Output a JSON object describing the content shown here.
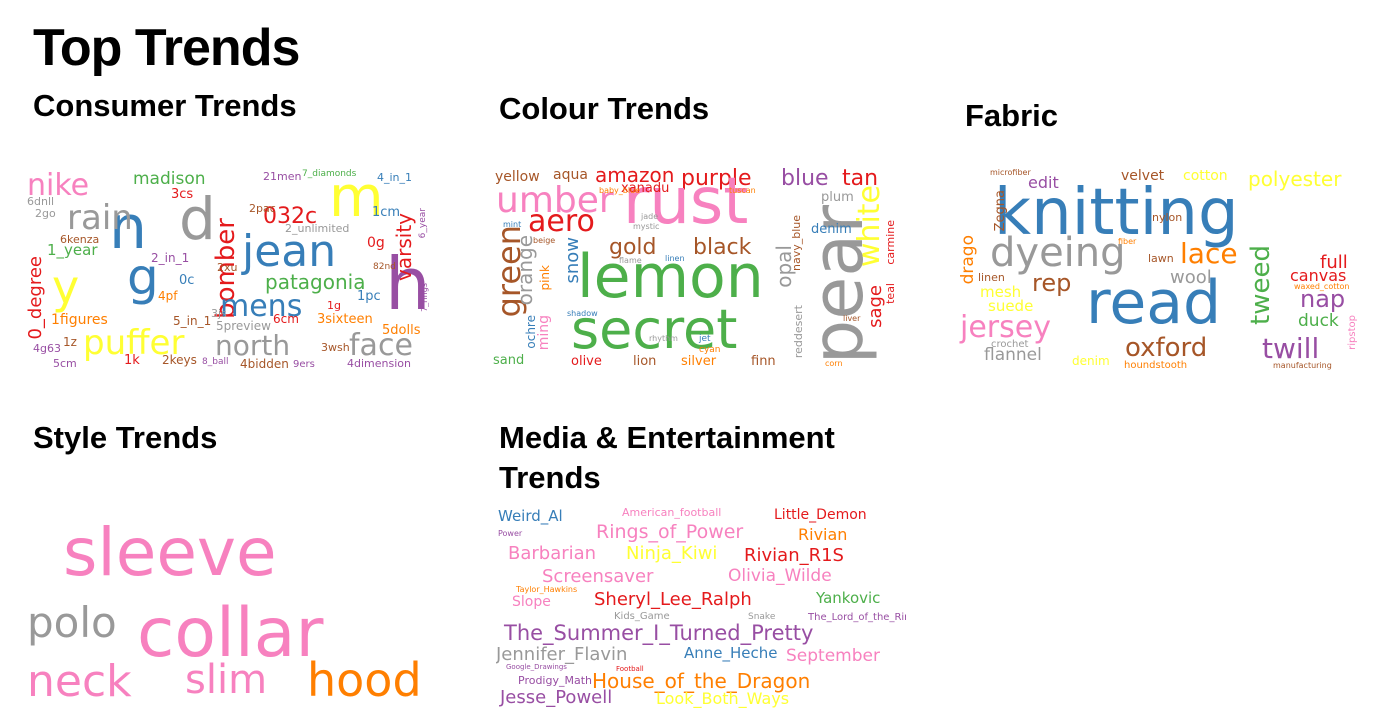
{
  "page": {
    "title": "Top Trends"
  },
  "sections": {
    "consumer": "Consumer Trends",
    "colour": "Colour Trends",
    "fabric": "Fabric",
    "style": "Style Trends",
    "media_line1": "Media & Entertainment",
    "media_line2": "Trends"
  },
  "colors": {
    "pink": "#f781bf",
    "red": "#e41a1c",
    "blue": "#377eb8",
    "green": "#4daf4a",
    "purple": "#984ea3",
    "orange": "#ff7f00",
    "yellow": "#ffff33",
    "brown": "#a65628",
    "gray": "#999999"
  },
  "clouds": {
    "consumer": [
      {
        "t": "nike",
        "s": 30,
        "c": "pink"
      },
      {
        "t": "n",
        "s": 60,
        "c": "blue"
      },
      {
        "t": "d",
        "s": 58,
        "c": "gray"
      },
      {
        "t": "m",
        "s": 56,
        "c": "yellow"
      },
      {
        "t": "jean",
        "s": 44,
        "c": "blue"
      },
      {
        "t": "h",
        "s": 72,
        "c": "purple"
      },
      {
        "t": "rain",
        "s": 34,
        "c": "gray"
      },
      {
        "t": "g",
        "s": 50,
        "c": "blue"
      },
      {
        "t": "y",
        "s": 46,
        "c": "yellow"
      },
      {
        "t": "bomber",
        "s": 26,
        "c": "red"
      },
      {
        "t": "032c",
        "s": 22,
        "c": "red"
      },
      {
        "t": "varsity",
        "s": 20,
        "c": "red"
      },
      {
        "t": "patagonia",
        "s": 20,
        "c": "green"
      },
      {
        "t": "mens",
        "s": 30,
        "c": "blue"
      },
      {
        "t": "puffer",
        "s": 34,
        "c": "yellow"
      },
      {
        "t": "north",
        "s": 28,
        "c": "gray"
      },
      {
        "t": "face",
        "s": 30,
        "c": "gray"
      },
      {
        "t": "madison",
        "s": 17,
        "c": "green"
      },
      {
        "t": "0_degree",
        "s": 18,
        "c": "red"
      },
      {
        "t": "1_year",
        "s": 15,
        "c": "green"
      },
      {
        "t": "1figures",
        "s": 14,
        "c": "orange"
      },
      {
        "t": "3sixteen",
        "s": 13,
        "c": "orange"
      },
      {
        "t": "5dolls",
        "s": 13,
        "c": "orange"
      },
      {
        "t": "2_unlimited",
        "s": 11,
        "c": "gray"
      },
      {
        "t": "4bidden",
        "s": 12,
        "c": "brown"
      },
      {
        "t": "4dimension",
        "s": 11,
        "c": "purple"
      },
      {
        "t": "5preview",
        "s": 12,
        "c": "gray"
      },
      {
        "t": "2keys",
        "s": 12,
        "c": "brown"
      },
      {
        "t": "6cm",
        "s": 12,
        "c": "red"
      },
      {
        "t": "1pc",
        "s": 13,
        "c": "blue"
      },
      {
        "t": "0g",
        "s": 14,
        "c": "red"
      },
      {
        "t": "1cm",
        "s": 13,
        "c": "blue"
      },
      {
        "t": "2go",
        "s": 11,
        "c": "gray"
      },
      {
        "t": "6dnll",
        "s": 11,
        "c": "gray"
      },
      {
        "t": "6kenza",
        "s": 11,
        "c": "brown"
      },
      {
        "t": "2_in_1",
        "s": 12,
        "c": "purple"
      },
      {
        "t": "5_in_1",
        "s": 12,
        "c": "brown"
      },
      {
        "t": "4pf",
        "s": 12,
        "c": "orange"
      },
      {
        "t": "3cs",
        "s": 13,
        "c": "red"
      },
      {
        "t": "1k",
        "s": 13,
        "c": "red"
      },
      {
        "t": "4g63",
        "s": 11,
        "c": "purple"
      },
      {
        "t": "5cm",
        "s": 11,
        "c": "purple"
      },
      {
        "t": "9ers",
        "s": 10,
        "c": "purple"
      },
      {
        "t": "21men",
        "s": 11,
        "c": "purple"
      },
      {
        "t": "7_diamonds",
        "s": 9,
        "c": "green"
      },
      {
        "t": "3wsh",
        "s": 11,
        "c": "brown"
      },
      {
        "t": "2pac",
        "s": 11,
        "c": "brown"
      },
      {
        "t": "4_in_1",
        "s": 11,
        "c": "blue"
      },
      {
        "t": "3js",
        "s": 11,
        "c": "gray"
      },
      {
        "t": "1g",
        "s": 11,
        "c": "red"
      },
      {
        "t": "2xu",
        "s": 11,
        "c": "brown"
      },
      {
        "t": "8_ball",
        "s": 9,
        "c": "purple"
      },
      {
        "t": "0c",
        "s": 13,
        "c": "blue"
      },
      {
        "t": "1z",
        "s": 12,
        "c": "brown"
      },
      {
        "t": "82nd",
        "s": 9,
        "c": "brown"
      },
      {
        "t": "6_year",
        "s": 9,
        "c": "purple"
      },
      {
        "t": "7_rings",
        "s": 8,
        "c": "purple"
      }
    ],
    "colour": [
      {
        "t": "yellow",
        "s": 14,
        "c": "brown"
      },
      {
        "t": "aqua",
        "s": 14,
        "c": "brown"
      },
      {
        "t": "amazon",
        "s": 20,
        "c": "red"
      },
      {
        "t": "purple",
        "s": 22,
        "c": "red"
      },
      {
        "t": "blue",
        "s": 22,
        "c": "purple"
      },
      {
        "t": "tan",
        "s": 22,
        "c": "red"
      },
      {
        "t": "umber",
        "s": 36,
        "c": "pink"
      },
      {
        "t": "rust",
        "s": 64,
        "c": "pink"
      },
      {
        "t": "pear",
        "s": 70,
        "c": "gray"
      },
      {
        "t": "aero",
        "s": 30,
        "c": "red"
      },
      {
        "t": "white",
        "s": 30,
        "c": "yellow"
      },
      {
        "t": "lemon",
        "s": 60,
        "c": "green"
      },
      {
        "t": "secret",
        "s": 54,
        "c": "green"
      },
      {
        "t": "green",
        "s": 32,
        "c": "brown"
      },
      {
        "t": "orange",
        "s": 20,
        "c": "gray"
      },
      {
        "t": "gold",
        "s": 22,
        "c": "brown"
      },
      {
        "t": "black",
        "s": 22,
        "c": "brown"
      },
      {
        "t": "snow",
        "s": 18,
        "c": "blue"
      },
      {
        "t": "opal",
        "s": 20,
        "c": "gray"
      },
      {
        "t": "denim",
        "s": 13,
        "c": "blue"
      },
      {
        "t": "plum",
        "s": 13,
        "c": "gray"
      },
      {
        "t": "sage",
        "s": 18,
        "c": "red"
      },
      {
        "t": "carmine",
        "s": 11,
        "c": "red"
      },
      {
        "t": "teal",
        "s": 11,
        "c": "red"
      },
      {
        "t": "xanadu",
        "s": 13,
        "c": "red"
      },
      {
        "t": "ming",
        "s": 14,
        "c": "pink"
      },
      {
        "t": "pink",
        "s": 12,
        "c": "orange"
      },
      {
        "t": "ochre",
        "s": 12,
        "c": "blue"
      },
      {
        "t": "sand",
        "s": 13,
        "c": "green"
      },
      {
        "t": "olive",
        "s": 13,
        "c": "red"
      },
      {
        "t": "lion",
        "s": 13,
        "c": "brown"
      },
      {
        "t": "silver",
        "s": 13,
        "c": "orange"
      },
      {
        "t": "finn",
        "s": 13,
        "c": "brown"
      },
      {
        "t": "reddesert",
        "s": 11,
        "c": "gray"
      },
      {
        "t": "navy_blue",
        "s": 11,
        "c": "brown"
      },
      {
        "t": "rhythm",
        "s": 8,
        "c": "gray"
      },
      {
        "t": "jet",
        "s": 9,
        "c": "blue"
      },
      {
        "t": "cyan",
        "s": 9,
        "c": "orange"
      },
      {
        "t": "linen",
        "s": 8,
        "c": "blue"
      },
      {
        "t": "flame",
        "s": 8,
        "c": "gray"
      },
      {
        "t": "jade",
        "s": 8,
        "c": "gray"
      },
      {
        "t": "mystic",
        "s": 8,
        "c": "gray"
      },
      {
        "t": "beige",
        "s": 8,
        "c": "brown"
      },
      {
        "t": "mint",
        "s": 8,
        "c": "blue"
      },
      {
        "t": "baby_blue",
        "s": 8,
        "c": "orange"
      },
      {
        "t": "tuscan",
        "s": 8,
        "c": "orange"
      },
      {
        "t": "shadow",
        "s": 8,
        "c": "blue"
      },
      {
        "t": "liver",
        "s": 8,
        "c": "brown"
      },
      {
        "t": "corn",
        "s": 8,
        "c": "orange"
      }
    ],
    "fabric": [
      {
        "t": "microfiber",
        "s": 8,
        "c": "brown"
      },
      {
        "t": "velvet",
        "s": 14,
        "c": "brown"
      },
      {
        "t": "cotton",
        "s": 14,
        "c": "yellow"
      },
      {
        "t": "polyester",
        "s": 20,
        "c": "yellow"
      },
      {
        "t": "edit",
        "s": 16,
        "c": "purple"
      },
      {
        "t": "knitting",
        "s": 64,
        "c": "blue"
      },
      {
        "t": "Zegna",
        "s": 13,
        "c": "brown"
      },
      {
        "t": "drago",
        "s": 17,
        "c": "orange"
      },
      {
        "t": "dyeing",
        "s": 40,
        "c": "gray"
      },
      {
        "t": "nylon",
        "s": 11,
        "c": "brown"
      },
      {
        "t": "lace",
        "s": 28,
        "c": "orange"
      },
      {
        "t": "full",
        "s": 18,
        "c": "red"
      },
      {
        "t": "canvas",
        "s": 16,
        "c": "red"
      },
      {
        "t": "lawn",
        "s": 11,
        "c": "brown"
      },
      {
        "t": "wool",
        "s": 18,
        "c": "gray"
      },
      {
        "t": "tweed",
        "s": 26,
        "c": "green"
      },
      {
        "t": "rep",
        "s": 24,
        "c": "brown"
      },
      {
        "t": "read",
        "s": 60,
        "c": "blue"
      },
      {
        "t": "nap",
        "s": 24,
        "c": "purple"
      },
      {
        "t": "linen",
        "s": 11,
        "c": "brown"
      },
      {
        "t": "mesh",
        "s": 15,
        "c": "yellow"
      },
      {
        "t": "suede",
        "s": 15,
        "c": "yellow"
      },
      {
        "t": "jersey",
        "s": 30,
        "c": "pink"
      },
      {
        "t": "duck",
        "s": 17,
        "c": "green"
      },
      {
        "t": "crochet",
        "s": 10,
        "c": "gray"
      },
      {
        "t": "flannel",
        "s": 17,
        "c": "gray"
      },
      {
        "t": "oxford",
        "s": 26,
        "c": "brown"
      },
      {
        "t": "twill",
        "s": 28,
        "c": "purple"
      },
      {
        "t": "denim",
        "s": 12,
        "c": "yellow"
      },
      {
        "t": "houndstooth",
        "s": 10,
        "c": "orange"
      },
      {
        "t": "ripstop",
        "s": 10,
        "c": "pink"
      },
      {
        "t": "manufacturing",
        "s": 8,
        "c": "brown"
      },
      {
        "t": "fiber",
        "s": 8,
        "c": "orange"
      },
      {
        "t": "waxed_cotton",
        "s": 8,
        "c": "orange"
      }
    ],
    "style": [
      {
        "t": "sleeve",
        "s": 66,
        "c": "pink"
      },
      {
        "t": "polo",
        "s": 42,
        "c": "gray"
      },
      {
        "t": "collar",
        "s": 68,
        "c": "pink"
      },
      {
        "t": "neck",
        "s": 44,
        "c": "pink"
      },
      {
        "t": "slim",
        "s": 40,
        "c": "pink"
      },
      {
        "t": "hood",
        "s": 46,
        "c": "orange"
      }
    ],
    "media": [
      {
        "t": "Weird_Al",
        "s": 15,
        "c": "blue"
      },
      {
        "t": "American_football",
        "s": 11,
        "c": "pink"
      },
      {
        "t": "Little_Demon",
        "s": 14,
        "c": "red"
      },
      {
        "t": "Rings_of_Power",
        "s": 19,
        "c": "pink"
      },
      {
        "t": "Rivian",
        "s": 16,
        "c": "orange"
      },
      {
        "t": "Barbarian",
        "s": 18,
        "c": "pink"
      },
      {
        "t": "Ninja_Kiwi",
        "s": 18,
        "c": "yellow"
      },
      {
        "t": "Rivian_R1S",
        "s": 18,
        "c": "red"
      },
      {
        "t": "Screensaver",
        "s": 18,
        "c": "pink"
      },
      {
        "t": "Olivia_Wilde",
        "s": 17,
        "c": "pink"
      },
      {
        "t": "Slope",
        "s": 14,
        "c": "pink"
      },
      {
        "t": "Sheryl_Lee_Ralph",
        "s": 18,
        "c": "red"
      },
      {
        "t": "Yankovic",
        "s": 15,
        "c": "green"
      },
      {
        "t": "The_Summer_I_Turned_Pretty",
        "s": 21,
        "c": "purple"
      },
      {
        "t": "Jennifer_Flavin",
        "s": 18,
        "c": "gray"
      },
      {
        "t": "Anne_Heche",
        "s": 15,
        "c": "blue"
      },
      {
        "t": "September",
        "s": 17,
        "c": "pink"
      },
      {
        "t": "House_of_the_Dragon",
        "s": 20,
        "c": "orange"
      },
      {
        "t": "Jesse_Powell",
        "s": 18,
        "c": "purple"
      },
      {
        "t": "Look_Both_Ways",
        "s": 16,
        "c": "yellow"
      },
      {
        "t": "Prodigy_Math",
        "s": 11,
        "c": "purple"
      },
      {
        "t": "Kids_Game",
        "s": 10,
        "c": "gray"
      },
      {
        "t": "The_Lord_of_the_Rings",
        "s": 10,
        "c": "purple"
      },
      {
        "t": "Taylor_Hawkins",
        "s": 8,
        "c": "orange"
      },
      {
        "t": "Power",
        "s": 8,
        "c": "purple"
      },
      {
        "t": "Snake",
        "s": 9,
        "c": "gray"
      },
      {
        "t": "Football",
        "s": 7,
        "c": "red"
      },
      {
        "t": "Google_Drawings",
        "s": 7,
        "c": "purple"
      }
    ]
  }
}
